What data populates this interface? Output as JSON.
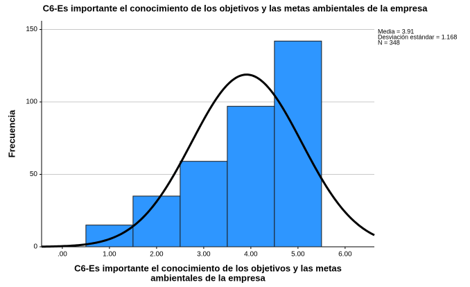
{
  "chart_data": {
    "type": "histogram",
    "title": "C6-Es importante el conocimiento de los objetivos y las metas ambientales de la empresa",
    "xlabel": [
      "C6-Es importante el conocimiento de los objetivos y las metas",
      "ambientales de la empresa"
    ],
    "ylabel": "Frecuencia",
    "bins": [
      0.5,
      1.5,
      2.5,
      3.5,
      4.5,
      5.5
    ],
    "values": [
      15,
      35,
      59,
      97,
      142
    ],
    "color": "#2e96ff",
    "edgecolor": "#1a1a1a",
    "xlim": [
      -0.44,
      6.62
    ],
    "xticks": [
      {
        "value": 0,
        "label": ".00"
      },
      {
        "value": 1,
        "label": "1.00"
      },
      {
        "value": 2,
        "label": "2.00"
      },
      {
        "value": 3,
        "label": "3.00"
      },
      {
        "value": 4,
        "label": "4.00"
      },
      {
        "value": 5,
        "label": "5.00"
      },
      {
        "value": 6,
        "label": "6.00"
      }
    ],
    "ylim": [
      0,
      156
    ],
    "yticks": [
      0,
      50,
      100,
      150
    ],
    "grid": true,
    "annotations": [
      "Media = 3.91",
      "Desviación estándar = 1.168",
      "N = 348"
    ],
    "normal_curve": {
      "mean": 3.91,
      "sd": 1.168,
      "n": 348
    }
  }
}
